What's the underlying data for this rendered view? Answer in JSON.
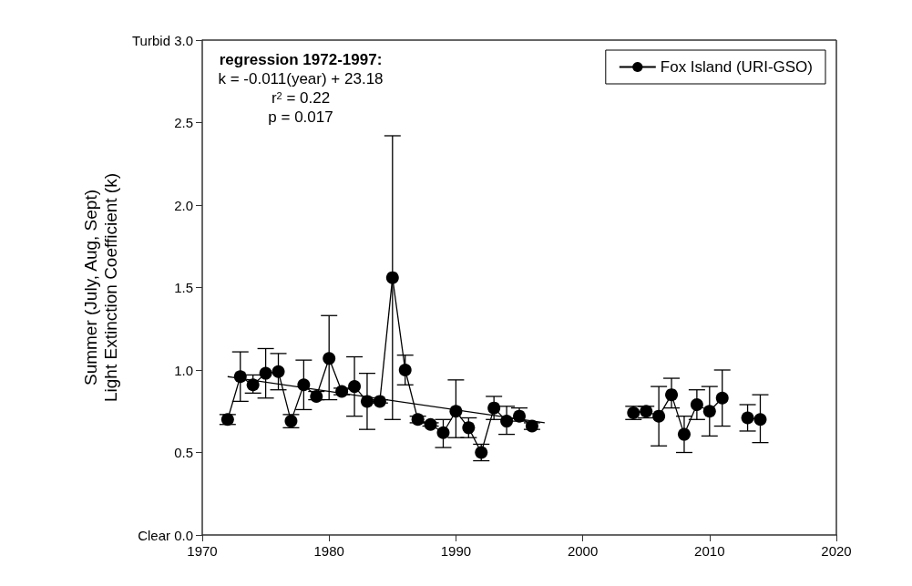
{
  "chart_data": {
    "type": "line",
    "ylabel": "Summer (July, Aug, Sept)\nLight Extinction Coefficient (k)",
    "annotations": [
      "regression 1972-1997:",
      "k = -0.011(year) + 23.18",
      "r$^{2}$ = 0.22",
      "p = 0.017"
    ],
    "xlim": [
      1970,
      2020
    ],
    "xticks": [
      1970,
      1980,
      1990,
      2000,
      2010,
      2020
    ],
    "ylim": [
      0,
      3
    ],
    "yticks": [
      {
        "value": 0,
        "label": "Clear 0.0"
      },
      {
        "value": 0.5,
        "label": "0.5"
      },
      {
        "value": 1,
        "label": "1.0"
      },
      {
        "value": 1.5,
        "label": "1.5"
      },
      {
        "value": 2,
        "label": "2.0"
      },
      {
        "value": 2.5,
        "label": "2.5"
      },
      {
        "value": 3,
        "label": "Turbid 3.0"
      }
    ],
    "grid": false,
    "legend": "top right",
    "marker": "circle",
    "line_style": "solid",
    "series": [
      {
        "name": "Fox Island (URI-GSO)",
        "color": "#000000",
        "x": [
          1972,
          1973,
          1974,
          1975,
          1976,
          1977,
          1978,
          1979,
          1980,
          1981,
          1982,
          1983,
          1984,
          1985,
          1986,
          1987,
          1988,
          1989,
          1990,
          1991,
          1992,
          1993,
          1994,
          1995,
          1996,
          2000,
          2004,
          2005,
          2006,
          2007,
          2008,
          2009,
          2010,
          2011,
          2012,
          2013,
          2014
        ],
        "values": [
          0.7,
          0.96,
          0.91,
          0.98,
          0.99,
          0.69,
          0.91,
          0.84,
          1.07,
          0.87,
          0.9,
          0.81,
          0.81,
          1.56,
          1.0,
          0.7,
          0.67,
          0.62,
          0.75,
          0.65,
          0.5,
          0.77,
          0.69,
          0.72,
          0.66,
          null,
          0.74,
          0.75,
          0.72,
          0.85,
          0.61,
          0.79,
          0.75,
          0.83,
          null,
          0.71,
          0.7
        ],
        "errors": [
          [
            0.67,
            0.73
          ],
          [
            0.81,
            1.11
          ],
          [
            0.86,
            0.97
          ],
          [
            0.83,
            1.13
          ],
          [
            0.88,
            1.1
          ],
          [
            0.65,
            0.73
          ],
          [
            0.76,
            1.06
          ],
          [
            0.82,
            0.87
          ],
          [
            0.82,
            1.33
          ],
          [
            0.85,
            0.89
          ],
          [
            0.72,
            1.08
          ],
          [
            0.64,
            0.98
          ],
          [
            0.8,
            0.82
          ],
          [
            0.7,
            2.42
          ],
          [
            0.91,
            1.09
          ],
          [
            0.68,
            0.72
          ],
          [
            0.66,
            0.68
          ],
          [
            0.53,
            0.7
          ],
          [
            0.59,
            0.94
          ],
          [
            0.59,
            0.71
          ],
          [
            0.45,
            0.55
          ],
          [
            0.7,
            0.84
          ],
          [
            0.61,
            0.78
          ],
          [
            0.69,
            0.77
          ],
          [
            0.64,
            0.68
          ],
          null,
          [
            0.7,
            0.78
          ],
          [
            0.71,
            0.78
          ],
          [
            0.54,
            0.9
          ],
          [
            0.77,
            0.95
          ],
          [
            0.5,
            0.72
          ],
          [
            0.7,
            0.88
          ],
          [
            0.6,
            0.9
          ],
          [
            0.66,
            1.0
          ],
          null,
          [
            0.63,
            0.79
          ],
          [
            0.56,
            0.85
          ]
        ]
      },
      {
        "type": "line",
        "color": "#000000",
        "marker": "none",
        "x": [
          1972,
          1997
        ],
        "values": [
          0.96,
          0.68
        ]
      }
    ]
  }
}
